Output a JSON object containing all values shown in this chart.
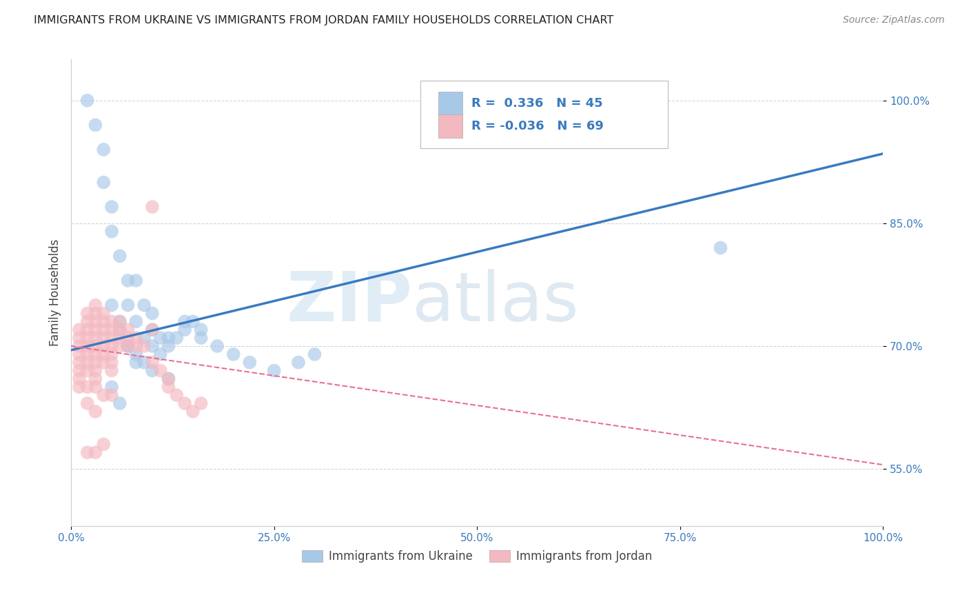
{
  "title": "IMMIGRANTS FROM UKRAINE VS IMMIGRANTS FROM JORDAN FAMILY HOUSEHOLDS CORRELATION CHART",
  "source": "Source: ZipAtlas.com",
  "ylabel": "Family Households",
  "ytick_labels": [
    "55.0%",
    "70.0%",
    "85.0%",
    "100.0%"
  ],
  "ytick_values": [
    0.55,
    0.7,
    0.85,
    1.0
  ],
  "xtick_labels": [
    "0.0%",
    "25.0%",
    "50.0%",
    "75.0%",
    "100.0%"
  ],
  "xtick_values": [
    0.0,
    0.25,
    0.5,
    0.75,
    1.0
  ],
  "xlim": [
    0.0,
    1.0
  ],
  "ylim": [
    0.48,
    1.05
  ],
  "ukraine_color": "#a8c8e8",
  "jordan_color": "#f4b8c0",
  "ukraine_line_color": "#3a7abf",
  "jordan_line_color": "#e87090",
  "ukraine_R": 0.336,
  "ukraine_N": 45,
  "jordan_R": -0.036,
  "jordan_N": 69,
  "ukraine_scatter_x": [
    0.02,
    0.03,
    0.04,
    0.04,
    0.05,
    0.05,
    0.06,
    0.07,
    0.07,
    0.08,
    0.09,
    0.1,
    0.1,
    0.11,
    0.12,
    0.13,
    0.14,
    0.15,
    0.16,
    0.08,
    0.09,
    0.1,
    0.11,
    0.12,
    0.14,
    0.16,
    0.18,
    0.2,
    0.22,
    0.25,
    0.28,
    0.3,
    0.06,
    0.07,
    0.08,
    0.09,
    0.05,
    0.06,
    0.07,
    0.08,
    0.1,
    0.12,
    0.8,
    0.05,
    0.06
  ],
  "ukraine_scatter_y": [
    1.0,
    0.97,
    0.94,
    0.9,
    0.87,
    0.84,
    0.81,
    0.78,
    0.75,
    0.78,
    0.75,
    0.74,
    0.72,
    0.71,
    0.7,
    0.71,
    0.72,
    0.73,
    0.72,
    0.73,
    0.71,
    0.7,
    0.69,
    0.71,
    0.73,
    0.71,
    0.7,
    0.69,
    0.68,
    0.67,
    0.68,
    0.69,
    0.72,
    0.7,
    0.69,
    0.68,
    0.75,
    0.73,
    0.7,
    0.68,
    0.67,
    0.66,
    0.82,
    0.65,
    0.63
  ],
  "jordan_scatter_x": [
    0.01,
    0.01,
    0.01,
    0.01,
    0.01,
    0.01,
    0.01,
    0.01,
    0.02,
    0.02,
    0.02,
    0.02,
    0.02,
    0.02,
    0.02,
    0.02,
    0.02,
    0.03,
    0.03,
    0.03,
    0.03,
    0.03,
    0.03,
    0.03,
    0.03,
    0.03,
    0.03,
    0.03,
    0.04,
    0.04,
    0.04,
    0.04,
    0.04,
    0.04,
    0.04,
    0.05,
    0.05,
    0.05,
    0.05,
    0.05,
    0.05,
    0.05,
    0.06,
    0.06,
    0.06,
    0.06,
    0.07,
    0.07,
    0.07,
    0.08,
    0.08,
    0.09,
    0.1,
    0.1,
    0.1,
    0.11,
    0.12,
    0.12,
    0.13,
    0.14,
    0.15,
    0.16,
    0.02,
    0.03,
    0.04,
    0.05,
    0.02,
    0.03,
    0.04
  ],
  "jordan_scatter_y": [
    0.72,
    0.71,
    0.7,
    0.69,
    0.68,
    0.67,
    0.66,
    0.65,
    0.74,
    0.73,
    0.72,
    0.71,
    0.7,
    0.69,
    0.68,
    0.67,
    0.65,
    0.75,
    0.74,
    0.73,
    0.72,
    0.71,
    0.7,
    0.69,
    0.68,
    0.67,
    0.66,
    0.65,
    0.74,
    0.73,
    0.72,
    0.71,
    0.7,
    0.69,
    0.68,
    0.73,
    0.72,
    0.71,
    0.7,
    0.69,
    0.68,
    0.67,
    0.73,
    0.72,
    0.71,
    0.7,
    0.72,
    0.71,
    0.7,
    0.71,
    0.7,
    0.7,
    0.87,
    0.72,
    0.68,
    0.67,
    0.66,
    0.65,
    0.64,
    0.63,
    0.62,
    0.63,
    0.63,
    0.62,
    0.64,
    0.64,
    0.57,
    0.57,
    0.58
  ],
  "watermark_zip": "ZIP",
  "watermark_atlas": "atlas",
  "legend_ukraine_text": "R =  0.336   N = 45",
  "legend_jordan_text": "R = -0.036   N = 69",
  "legend_color_text": "#3a7abf",
  "bottom_legend_ukraine": "Immigrants from Ukraine",
  "bottom_legend_jordan": "Immigrants from Jordan"
}
